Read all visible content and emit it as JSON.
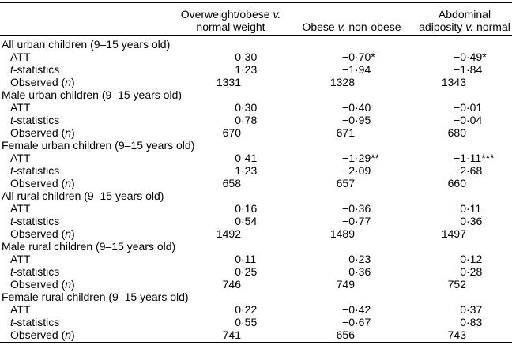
{
  "table": {
    "corner_label": "",
    "colors": {
      "text": "#000000",
      "background": "#ffffff",
      "rule": "#000000"
    },
    "columns": [
      {
        "lines": [
          "Overweight/obese v.",
          "normal weight"
        ]
      },
      {
        "lines": [
          "Obese v. non-obese"
        ]
      },
      {
        "lines": [
          "Abdominal",
          "adiposity v. normal"
        ]
      }
    ],
    "groups": [
      {
        "label": "All urban children (9–15 years old)",
        "rows": [
          {
            "label": "ATT",
            "values": [
              "0·30",
              "−0·70*",
              "−0·49*"
            ]
          },
          {
            "label": "t-statistics",
            "values": [
              "1·23",
              "−1·94",
              "−1·84"
            ]
          },
          {
            "label": "Observed (n)",
            "values": [
              "1331",
              "1328",
              "1343"
            ]
          }
        ]
      },
      {
        "label": "Male urban children (9–15 years old)",
        "rows": [
          {
            "label": "ATT",
            "values": [
              "0·30",
              "−0·40",
              "−0·01"
            ]
          },
          {
            "label": "t-statistics",
            "values": [
              "0·78",
              "−0·95",
              "−0·04"
            ]
          },
          {
            "label": "Observed (n)",
            "values": [
              "670",
              "671",
              "680"
            ]
          }
        ]
      },
      {
        "label": "Female urban children (9–15 years old)",
        "rows": [
          {
            "label": "ATT",
            "values": [
              "0·41",
              "−1·29**",
              "−1·11***"
            ]
          },
          {
            "label": "t-statistics",
            "values": [
              "1·23",
              "−2·09",
              "−2·68"
            ]
          },
          {
            "label": "Observed (n)",
            "values": [
              "658",
              "657",
              "660"
            ]
          }
        ]
      },
      {
        "label": "All rural children (9–15 years old)",
        "rows": [
          {
            "label": "ATT",
            "values": [
              "0·16",
              "−0·36",
              "0·11"
            ]
          },
          {
            "label": "t-statistics",
            "values": [
              "0·54",
              "−0·77",
              "0·36"
            ]
          },
          {
            "label": "Observed (n)",
            "values": [
              "1492",
              "1489",
              "1497"
            ]
          }
        ]
      },
      {
        "label": "Male rural children (9–15 years old)",
        "rows": [
          {
            "label": "ATT",
            "values": [
              "0·11",
              "0·23",
              "0·12"
            ]
          },
          {
            "label": "t-statistics",
            "values": [
              "0·25",
              "0·36",
              "0·28"
            ]
          },
          {
            "label": "Observed (n)",
            "values": [
              "746",
              "749",
              "752"
            ]
          }
        ]
      },
      {
        "label": "Female rural children (9–15 years old)",
        "rows": [
          {
            "label": "ATT",
            "values": [
              "0·22",
              "−0·42",
              "0·37"
            ]
          },
          {
            "label": "t-statistics",
            "values": [
              "0·55",
              "−0·67",
              "0·83"
            ]
          },
          {
            "label": "Observed (n)",
            "values": [
              "741",
              "656",
              "743"
            ]
          }
        ]
      }
    ]
  }
}
